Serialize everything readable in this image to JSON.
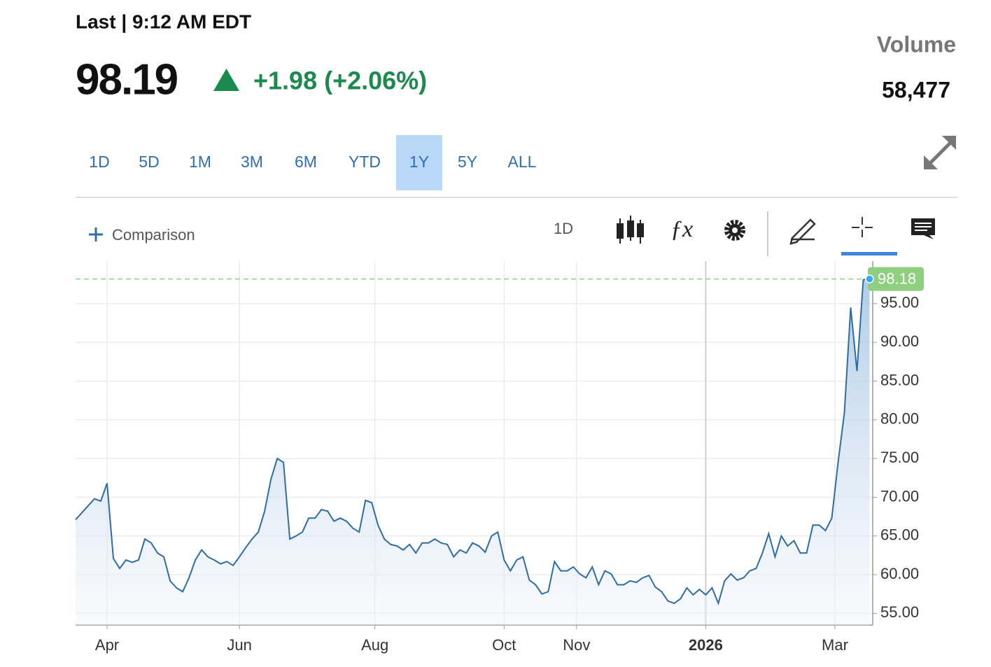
{
  "header": {
    "status": "Last | 9:12 AM EDT",
    "price": "98.19",
    "change": "+1.98 (+2.06%)",
    "volume_label": "Volume",
    "volume": "58,477"
  },
  "ranges": [
    "1D",
    "5D",
    "1M",
    "3M",
    "6M",
    "YTD",
    "1Y",
    "5Y",
    "ALL"
  ],
  "active_range_index": 6,
  "toolbar": {
    "comparison": "Comparison",
    "interval": "1D"
  },
  "chart_data": {
    "type": "line",
    "x": [
      0,
      2,
      4,
      6,
      8,
      10,
      12,
      14,
      16,
      18,
      20,
      22,
      24,
      26,
      28,
      30,
      32,
      34,
      36,
      38,
      40,
      42,
      44,
      46,
      48,
      50,
      52,
      54,
      56,
      58,
      60,
      62,
      64,
      66,
      68,
      70,
      72,
      74,
      76,
      78,
      80,
      82,
      84,
      86,
      88,
      90,
      92,
      94,
      96,
      98,
      100,
      102,
      104,
      106,
      108,
      110,
      112,
      114,
      116,
      118,
      120,
      122,
      124,
      126,
      128,
      130,
      132,
      134,
      136,
      138,
      140,
      142,
      144,
      146,
      148,
      150,
      152,
      154,
      156,
      158,
      160,
      162,
      164,
      166,
      168,
      170,
      172,
      174,
      176,
      178,
      180,
      182,
      184,
      186,
      188,
      190,
      192,
      194,
      196,
      198,
      200,
      202,
      204,
      206,
      208,
      210,
      212,
      214,
      216,
      218,
      220,
      222,
      224,
      226,
      228,
      230,
      232,
      234,
      236,
      238,
      240,
      242,
      244,
      246,
      248,
      250,
      252
    ],
    "series": [
      {
        "color": "#2e6da4",
        "values": [
          67.1,
          68.0,
          68.9,
          69.8,
          69.5,
          71.8,
          62.1,
          60.8,
          61.9,
          61.6,
          61.9,
          64.6,
          64.1,
          62.8,
          62.3,
          59.2,
          58.3,
          57.8,
          59.6,
          61.9,
          63.2,
          62.3,
          61.9,
          61.4,
          61.7,
          61.2,
          62.3,
          63.5,
          64.6,
          65.5,
          68.2,
          72.3,
          75.0,
          74.5,
          64.6,
          65.0,
          65.5,
          67.3,
          67.3,
          68.4,
          68.2,
          66.9,
          67.3,
          66.9,
          66.0,
          65.5,
          69.6,
          69.3,
          66.4,
          64.6,
          63.9,
          63.7,
          63.2,
          63.9,
          62.8,
          64.1,
          64.1,
          64.6,
          64.1,
          63.9,
          62.3,
          63.2,
          62.8,
          64.1,
          63.7,
          62.9,
          65.0,
          65.5,
          61.9,
          60.5,
          61.9,
          62.3,
          59.3,
          58.7,
          57.5,
          57.8,
          61.7,
          60.5,
          60.5,
          61.0,
          60.1,
          59.6,
          61.0,
          58.7,
          60.5,
          60.1,
          58.7,
          58.7,
          59.2,
          59.0,
          59.6,
          59.9,
          58.4,
          57.8,
          56.6,
          56.3,
          56.9,
          58.3,
          57.4,
          58.1,
          57.4,
          58.3,
          56.3,
          59.2,
          60.1,
          59.3,
          59.6,
          60.5,
          60.8,
          62.8,
          65.3,
          62.3,
          65.0,
          63.7,
          64.4,
          62.8,
          62.8,
          66.4,
          66.4,
          65.7,
          67.3,
          74.5,
          80.9,
          94.5,
          86.3,
          98.1,
          98.18
        ]
      }
    ],
    "xlim": [
      0,
      253
    ],
    "xticks": [
      {
        "value": 10,
        "label": "Apr"
      },
      {
        "value": 52,
        "label": "Jun"
      },
      {
        "value": 95,
        "label": "Aug"
      },
      {
        "value": 136,
        "label": "Oct"
      },
      {
        "value": 159,
        "label": "Nov"
      },
      {
        "value": 200,
        "label": "2026"
      },
      {
        "value": 241,
        "label": "Mar"
      }
    ],
    "ylim": [
      53.5,
      100.5
    ],
    "yticks": [
      {
        "value": 55,
        "label": "55.00"
      },
      {
        "value": 60,
        "label": "60.00"
      },
      {
        "value": 65,
        "label": "65.00"
      },
      {
        "value": 70,
        "label": "70.00"
      },
      {
        "value": 75,
        "label": "75.00"
      },
      {
        "value": 80,
        "label": "80.00"
      },
      {
        "value": 85,
        "label": "85.00"
      },
      {
        "value": 90,
        "label": "90.00"
      },
      {
        "value": 95,
        "label": "95.00"
      }
    ],
    "grid": true
  }
}
